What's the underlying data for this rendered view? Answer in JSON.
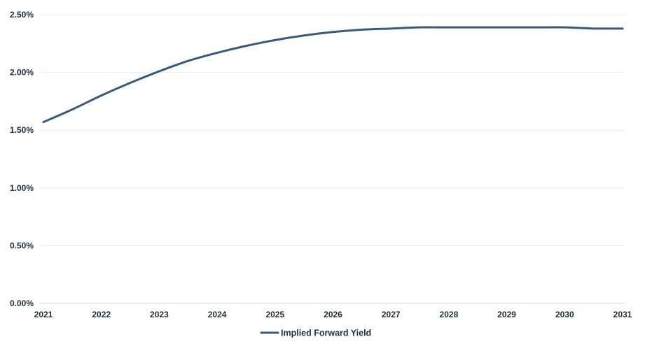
{
  "chart_data": {
    "type": "line",
    "x_ticks": [
      "2021",
      "2022",
      "2023",
      "2024",
      "2025",
      "2026",
      "2027",
      "2028",
      "2029",
      "2030",
      "2031"
    ],
    "y_ticks": [
      "0.00%",
      "0.50%",
      "1.00%",
      "1.50%",
      "2.00%",
      "2.50%"
    ],
    "ylim": [
      0,
      2.5
    ],
    "xlim": [
      2021,
      2031
    ],
    "grid": true,
    "legend_position": "bottom-center",
    "series": [
      {
        "name": "Implied Forward Yield",
        "color": "#3a5a7c",
        "x": [
          2021,
          2021.5,
          2022,
          2022.5,
          2023,
          2023.5,
          2024,
          2024.5,
          2025,
          2025.5,
          2026,
          2026.5,
          2027,
          2027.5,
          2028,
          2028.5,
          2029,
          2029.5,
          2030,
          2030.5,
          2031
        ],
        "y": [
          1.57,
          1.68,
          1.8,
          1.91,
          2.01,
          2.1,
          2.17,
          2.23,
          2.28,
          2.32,
          2.35,
          2.37,
          2.38,
          2.39,
          2.39,
          2.39,
          2.39,
          2.39,
          2.39,
          2.38,
          2.38
        ]
      }
    ]
  }
}
